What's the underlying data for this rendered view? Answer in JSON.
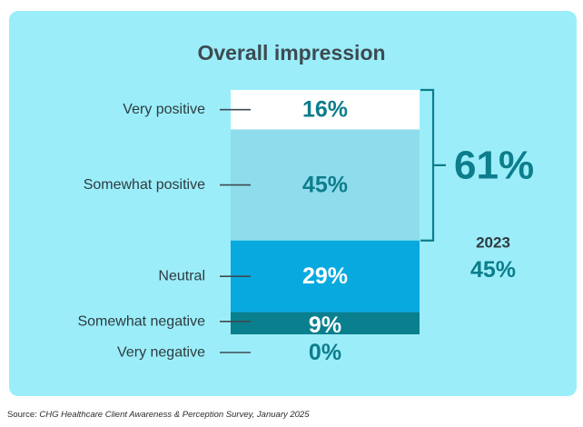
{
  "chart_data": {
    "type": "bar",
    "subtype": "stacked-single-column",
    "title": "Overall impression",
    "categories": [
      "Very positive",
      "Somewhat positive",
      "Neutral",
      "Somewhat negative",
      "Very negative"
    ],
    "values": [
      16,
      45,
      29,
      9,
      0
    ],
    "value_labels": [
      "16%",
      "45%",
      "29%",
      "9%",
      "0%"
    ],
    "colors": [
      "#ffffff",
      "#8fdcec",
      "#08a9df",
      "#0a7f8e",
      "#0a7f8e"
    ],
    "label_colors": [
      "#0d7d8c",
      "#0d7d8c",
      "#ffffff",
      "#ffffff",
      "#0d7d8c"
    ],
    "unit": "%",
    "bracket": {
      "covers": [
        "Very positive",
        "Somewhat positive"
      ],
      "value": 61,
      "label": "61%"
    },
    "comparison": {
      "year": "2023",
      "value": 45,
      "label": "45%"
    },
    "grid": false,
    "legend": "none"
  },
  "source": {
    "prefix": "Source: ",
    "text": "CHG Healthcare Client Awareness & Perception Survey, January 2025"
  },
  "colors": {
    "panel": "#9beef9",
    "accent": "#0d7d8c",
    "text": "#3d4a52"
  }
}
